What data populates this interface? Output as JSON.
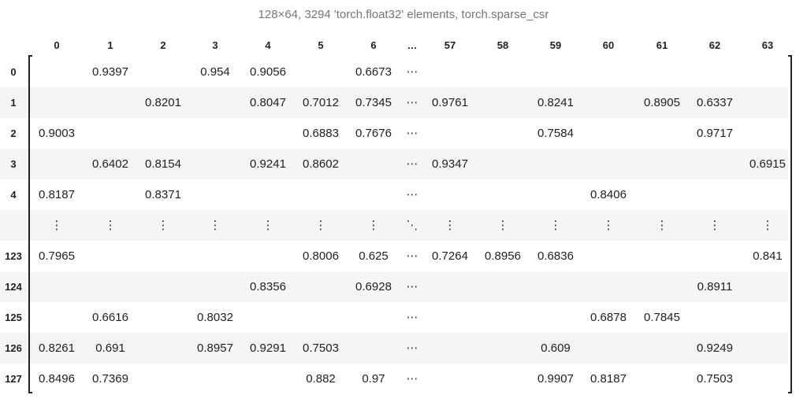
{
  "caption": "128×64, 3294 'torch.float32' elements, torch.sparse_csr",
  "columns": [
    "0",
    "1",
    "2",
    "3",
    "4",
    "5",
    "6",
    "…",
    "57",
    "58",
    "59",
    "60",
    "61",
    "62",
    "63"
  ],
  "rows": [
    {
      "label": "0",
      "cells": [
        "",
        "0.9397",
        "",
        "0.954",
        "0.9056",
        "",
        "0.6673",
        "⋯",
        "",
        "",
        "",
        "",
        "",
        "",
        ""
      ]
    },
    {
      "label": "1",
      "cells": [
        "",
        "",
        "0.8201",
        "",
        "0.8047",
        "0.7012",
        "0.7345",
        "⋯",
        "0.9761",
        "",
        "0.8241",
        "",
        "0.8905",
        "0.6337",
        ""
      ]
    },
    {
      "label": "2",
      "cells": [
        "0.9003",
        "",
        "",
        "",
        "",
        "0.6883",
        "0.7676",
        "⋯",
        "",
        "",
        "0.7584",
        "",
        "",
        "0.9717",
        ""
      ]
    },
    {
      "label": "3",
      "cells": [
        "",
        "0.6402",
        "0.8154",
        "",
        "0.9241",
        "0.8602",
        "",
        "⋯",
        "0.9347",
        "",
        "",
        "",
        "",
        "",
        "0.6915"
      ]
    },
    {
      "label": "4",
      "cells": [
        "0.8187",
        "",
        "0.8371",
        "",
        "",
        "",
        "",
        "⋯",
        "",
        "",
        "",
        "0.8406",
        "",
        "",
        ""
      ]
    },
    {
      "label": "",
      "cells": [
        "⋮",
        "⋮",
        "⋮",
        "⋮",
        "⋮",
        "⋮",
        "⋮",
        "⋱",
        "⋮",
        "⋮",
        "⋮",
        "⋮",
        "⋮",
        "⋮",
        "⋮"
      ]
    },
    {
      "label": "123",
      "cells": [
        "0.7965",
        "",
        "",
        "",
        "",
        "0.8006",
        "0.625",
        "⋯",
        "0.7264",
        "0.8956",
        "0.6836",
        "",
        "",
        "",
        "0.841"
      ]
    },
    {
      "label": "124",
      "cells": [
        "",
        "",
        "",
        "",
        "0.8356",
        "",
        "0.6928",
        "⋯",
        "",
        "",
        "",
        "",
        "",
        "0.8911",
        ""
      ]
    },
    {
      "label": "125",
      "cells": [
        "",
        "0.6616",
        "",
        "0.8032",
        "",
        "",
        "",
        "⋯",
        "",
        "",
        "",
        "0.6878",
        "0.7845",
        "",
        ""
      ]
    },
    {
      "label": "126",
      "cells": [
        "0.8261",
        "0.691",
        "",
        "0.8957",
        "0.9291",
        "0.7503",
        "",
        "⋯",
        "",
        "",
        "0.609",
        "",
        "",
        "0.9249",
        ""
      ]
    },
    {
      "label": "127",
      "cells": [
        "0.8496",
        "0.7369",
        "",
        "",
        "",
        "0.882",
        "0.97",
        "⋯",
        "",
        "",
        "0.9907",
        "0.8187",
        "",
        "0.7503",
        ""
      ]
    }
  ]
}
